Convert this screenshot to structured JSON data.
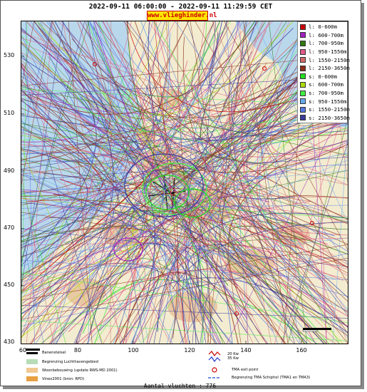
{
  "header": {
    "title": "2022-09-11 06:00:00 - 2022-09-11 11:29:59 CET",
    "site": "www.vlieghinder.nl"
  },
  "axes": {
    "y_ticks": [
      "530",
      "510",
      "490",
      "470",
      "450",
      "430"
    ],
    "x_ticks": [
      "60",
      "80",
      "100",
      "120",
      "140",
      "160"
    ]
  },
  "legend": [
    {
      "label": "l: 0-600m",
      "color": "#cc0000"
    },
    {
      "label": "l: 600-700m",
      "color": "#a020c0"
    },
    {
      "label": "l: 700-950m",
      "color": "#2f7a10"
    },
    {
      "label": "l: 950-1550m",
      "color": "#e05a8a"
    },
    {
      "label": "l: 1550-2150m",
      "color": "#d06a6a"
    },
    {
      "label": "l: 2150-3650m",
      "color": "#8b2e1a"
    },
    {
      "label": "s: 0-600m",
      "color": "#22dd22"
    },
    {
      "label": "s: 600-700m",
      "color": "#aadd00"
    },
    {
      "label": "s: 700-950m",
      "color": "#44ee44"
    },
    {
      "label": "s: 950-1550m",
      "color": "#66aaee"
    },
    {
      "label": "s: 1550-2150m",
      "color": "#5577dd"
    },
    {
      "label": "s: 2150-3650m",
      "color": "#3b3b9a"
    }
  ],
  "bottom_legend": {
    "left": [
      {
        "label": "Banenstelsel",
        "color": "#000000"
      },
      {
        "label": "Begrenzing Luchthavengebied",
        "color": "#b7dcb7"
      },
      {
        "label": "Woonbebouwing (update RWS-MD 2001)",
        "color": "#f0c890"
      },
      {
        "label": "Vinex2001 (bron: RPD)",
        "color": "#e8a040"
      }
    ],
    "right": [
      {
        "label": "20 Kw",
        "color": "#cc0000"
      },
      {
        "label": "35 Kw",
        "color": "#2233cc"
      },
      {
        "label": "TMA exit point",
        "color": "#cc0000"
      },
      {
        "label": "Begrenzing TMA Schiphol (TMA1 en TMA3)",
        "color": "#4466dd"
      }
    ]
  },
  "footer": {
    "count": "Aantal vluchten : 776"
  },
  "colors": {
    "water": "#b9d8ec",
    "land": "#f3ecd0",
    "urban": "#e9c9a4",
    "airport": "#cfe3c2"
  }
}
